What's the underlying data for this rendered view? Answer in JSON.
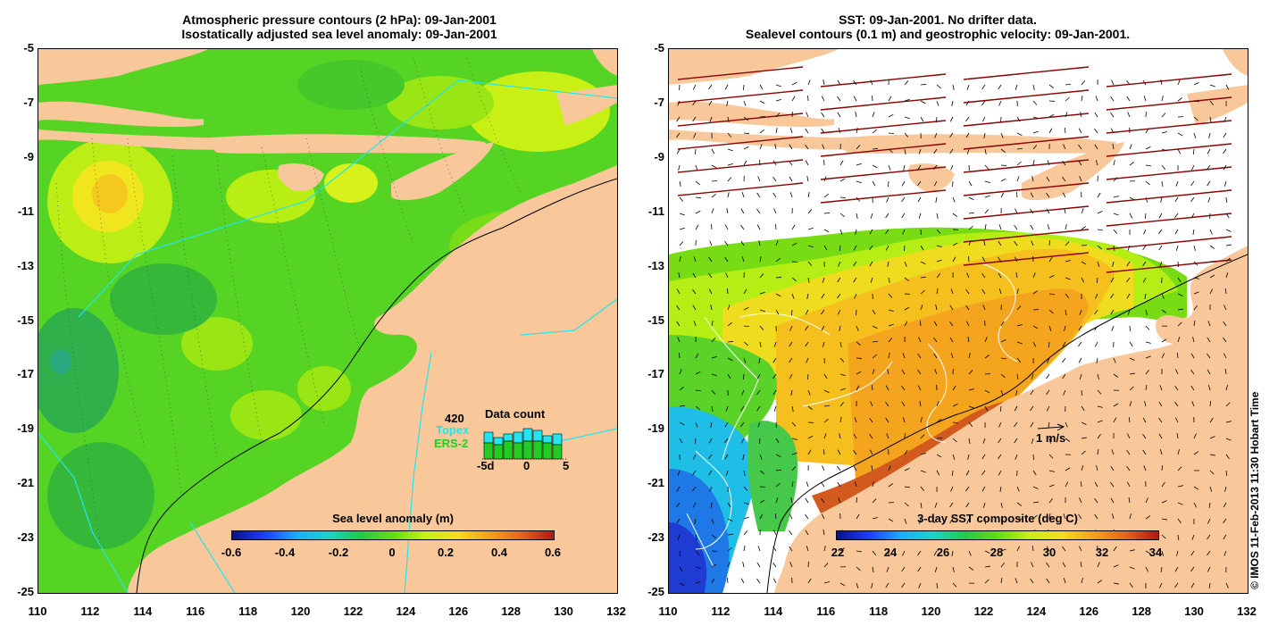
{
  "left_panel": {
    "title_line1": "Atmospheric pressure contours (2 hPa): 09-Jan-2001",
    "title_line2": "Isostatically adjusted sea level anomaly: 09-Jan-2001",
    "colorbar_label": "Sea level anomaly (m)",
    "colorbar_ticks": [
      "-0.6",
      "-0.4",
      "-0.2",
      "0",
      "0.2",
      "0.4",
      "0.6"
    ],
    "inset": {
      "count": "420",
      "topex_label": "Topex",
      "ers2_label": "ERS-2",
      "title": "Data count",
      "axis_ticks": [
        "-5d",
        "0",
        "5"
      ],
      "topex_color": "#22e5f0",
      "ers2_color": "#22cc22"
    }
  },
  "right_panel": {
    "title_line1": "SST: 09-Jan-2001. No drifter data.",
    "title_line2": "Sealevel contours (0.1 m) and geostrophic velocity: 09-Jan-2001.",
    "colorbar_label": "3-day SST composite (deg C)",
    "colorbar_ticks": [
      "22",
      "24",
      "26",
      "28",
      "30",
      "32",
      "34"
    ],
    "velocity_scale_label": "1 m/s"
  },
  "axes": {
    "y_ticks": [
      "-5",
      "-7",
      "-9",
      "-11",
      "-13",
      "-15",
      "-17",
      "-19",
      "-21",
      "-23",
      "-25"
    ],
    "x_ticks": [
      "110",
      "112",
      "114",
      "116",
      "118",
      "120",
      "122",
      "124",
      "126",
      "128",
      "130",
      "132"
    ]
  },
  "colors": {
    "land": "#f8c89b",
    "sla_background": "#55d424",
    "wind_arrow": "#8b0000"
  },
  "copyright": "© IMOS 11-Feb-2013 11:30 Hobart Time"
}
